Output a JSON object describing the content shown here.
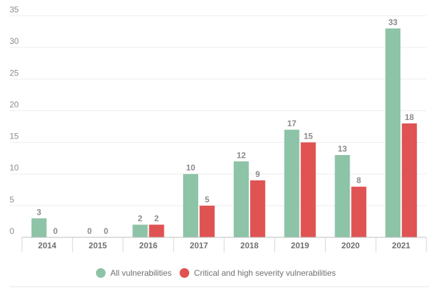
{
  "chart_data": {
    "type": "bar",
    "categories": [
      "2014",
      "2015",
      "2016",
      "2017",
      "2018",
      "2019",
      "2020",
      "2021"
    ],
    "series": [
      {
        "name": "All vulnerabilities",
        "color": "#8dc3a7",
        "values": [
          3,
          0,
          2,
          10,
          12,
          17,
          13,
          33
        ]
      },
      {
        "name": "Critical and high severity vulnerabilities",
        "color": "#e05353",
        "values": [
          0,
          0,
          2,
          5,
          9,
          15,
          8,
          18
        ]
      }
    ],
    "yticks": [
      0,
      5,
      10,
      15,
      20,
      25,
      30,
      35
    ],
    "ylim": [
      0,
      35
    ],
    "title": "",
    "xlabel": "",
    "ylabel": "",
    "grid": true,
    "legend_position": "bottom"
  }
}
